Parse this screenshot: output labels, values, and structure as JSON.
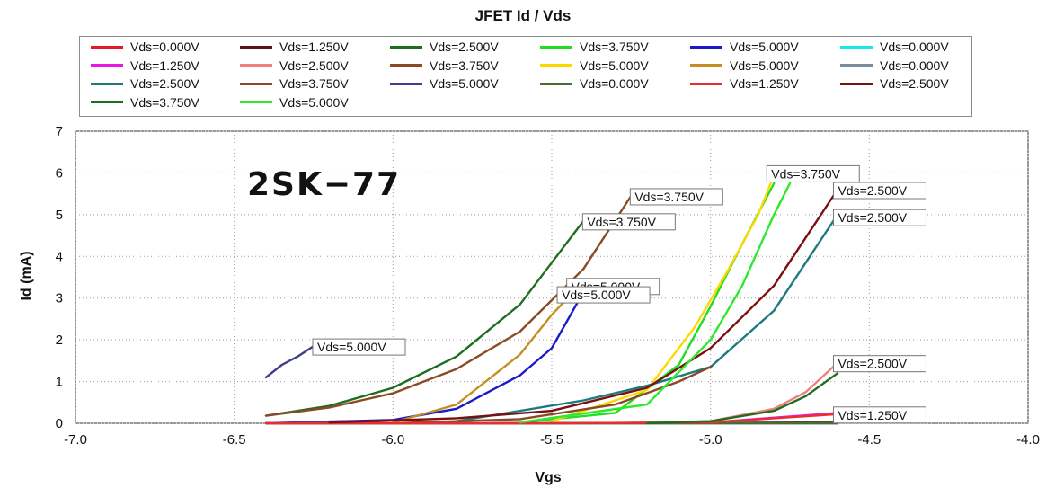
{
  "chart_data": {
    "type": "line",
    "title": "JFET Id / Vds",
    "xlabel": "Vgs",
    "ylabel": "Id (mA)",
    "xlim": [
      -7.0,
      -4.0
    ],
    "ylim": [
      0,
      7
    ],
    "xticks": [
      "-7.0",
      "-6.5",
      "-6.0",
      "-5.5",
      "-5.0",
      "-4.5",
      "-4.0"
    ],
    "yticks": [
      "0",
      "1",
      "2",
      "3",
      "4",
      "5",
      "6",
      "7"
    ],
    "grid": "dotted",
    "legend_position": "top",
    "annotation": "2SK−77",
    "series": [
      {
        "name": "Vds=0.000V",
        "color": "#e8192c",
        "x": [
          -6.4,
          -6.0,
          -5.5,
          -5.0,
          -4.6
        ],
        "y": [
          0,
          0,
          0,
          0,
          0
        ]
      },
      {
        "name": "Vds=1.250V",
        "color": "#5a1414",
        "x": [
          -6.4,
          -6.0,
          -5.5,
          -5.0,
          -4.6
        ],
        "y": [
          0,
          0,
          0,
          0.01,
          0.02
        ]
      },
      {
        "name": "Vds=2.500V",
        "color": "#1f6e1f",
        "x": [
          -6.4,
          -6.2,
          -6.0,
          -5.8,
          -5.6,
          -5.4
        ],
        "y": [
          0.18,
          0.42,
          0.85,
          1.6,
          2.85,
          4.85
        ]
      },
      {
        "name": "Vds=3.750V",
        "color": "#22dd22",
        "x": [
          -5.6,
          -5.3,
          -5.1,
          -5.0,
          -4.9,
          -4.8
        ],
        "y": [
          0.02,
          0.25,
          1.4,
          2.8,
          4.3,
          5.75
        ]
      },
      {
        "name": "Vds=5.000V",
        "color": "#1a1acc",
        "x": [
          -6.4,
          -6.0,
          -5.8,
          -5.6,
          -5.5,
          -5.4
        ],
        "y": [
          0,
          0.08,
          0.35,
          1.15,
          1.8,
          3.15
        ]
      },
      {
        "name": "Vds=0.000V",
        "color": "#19e8e8",
        "x": [
          -6.4,
          -6.0,
          -5.5,
          -5.0,
          -4.6
        ],
        "y": [
          0,
          0,
          0,
          0,
          0
        ]
      },
      {
        "name": "Vds=1.250V",
        "color": "#e819e8",
        "x": [
          -6.4,
          -6.0,
          -5.5,
          -5.0,
          -4.6
        ],
        "y": [
          0,
          0,
          0,
          0.02,
          0.25
        ]
      },
      {
        "name": "Vds=2.500V",
        "color": "#f08080",
        "x": [
          -5.3,
          -5.0,
          -4.8,
          -4.7,
          -4.6
        ],
        "y": [
          0,
          0.05,
          0.35,
          0.75,
          1.45
        ]
      },
      {
        "name": "Vds=3.750V",
        "color": "#8b4a26",
        "x": [
          -6.4,
          -6.2,
          -6.0,
          -5.8,
          -5.6,
          -5.4,
          -5.25
        ],
        "y": [
          0.18,
          0.38,
          0.72,
          1.3,
          2.2,
          3.7,
          5.45
        ]
      },
      {
        "name": "Vds=5.000V",
        "color": "#ffd700",
        "x": [
          -5.5,
          -5.2,
          -5.05,
          -4.95,
          -4.85,
          -4.8
        ],
        "y": [
          0.05,
          0.8,
          2.3,
          3.6,
          5.0,
          5.95
        ]
      },
      {
        "name": "Vds=5.000V",
        "color": "#c48f22",
        "x": [
          -6.0,
          -5.8,
          -5.6,
          -5.5,
          -5.45,
          -5.4
        ],
        "y": [
          0.02,
          0.45,
          1.65,
          2.6,
          3.0,
          3.05
        ]
      },
      {
        "name": "Vds=0.000V",
        "color": "#7a8c99",
        "x": [
          -6.4,
          -6.0,
          -5.5,
          -5.0,
          -4.6
        ],
        "y": [
          0,
          0,
          0,
          0,
          0
        ]
      },
      {
        "name": "Vds=2.500V",
        "color": "#1f7a80",
        "x": [
          -5.8,
          -5.4,
          -5.2,
          -5.0,
          -4.8,
          -4.6
        ],
        "y": [
          0.05,
          0.55,
          0.9,
          1.35,
          2.7,
          5.0
        ]
      },
      {
        "name": "Vds=3.750V",
        "color": "#8b4a26",
        "x": [
          -6.0,
          -5.6,
          -5.3,
          -5.1,
          -5.0
        ],
        "y": [
          0,
          0.1,
          0.45,
          1.0,
          1.35
        ]
      },
      {
        "name": "Vds=5.000V",
        "color": "#3d3d8a",
        "x": [
          -6.4,
          -6.35,
          -6.3,
          -6.25
        ],
        "y": [
          1.1,
          1.4,
          1.6,
          1.85
        ]
      },
      {
        "name": "Vds=0.000V",
        "color": "#4a6b33",
        "x": [
          -6.4,
          -6.0,
          -5.5,
          -5.0,
          -4.6
        ],
        "y": [
          0,
          0,
          0,
          0,
          0
        ]
      },
      {
        "name": "Vds=1.250V",
        "color": "#e82e2e",
        "x": [
          -6.4,
          -6.0,
          -5.5,
          -5.0,
          -4.6
        ],
        "y": [
          0,
          0,
          0,
          0.02,
          0.22
        ]
      },
      {
        "name": "Vds=2.500V",
        "color": "#7a1010",
        "x": [
          -6.2,
          -5.8,
          -5.5,
          -5.2,
          -5.0,
          -4.8,
          -4.6
        ],
        "y": [
          0.02,
          0.12,
          0.3,
          0.85,
          1.8,
          3.3,
          5.6
        ]
      },
      {
        "name": "Vds=3.750V",
        "color": "#1f6e1f",
        "x": [
          -5.2,
          -5.0,
          -4.8,
          -4.7,
          -4.6
        ],
        "y": [
          0,
          0.05,
          0.3,
          0.65,
          1.2
        ]
      },
      {
        "name": "Vds=5.000V",
        "color": "#2ee82e",
        "x": [
          -5.6,
          -5.2,
          -5.0,
          -4.9,
          -4.8,
          -4.75
        ],
        "y": [
          0.02,
          0.45,
          2.0,
          3.3,
          5.0,
          5.75
        ]
      }
    ],
    "curve_labels": [
      {
        "text": "Vds=5.000V",
        "x": -6.25,
        "y": 1.85
      },
      {
        "text": "Vds=3.750V",
        "x": -5.4,
        "y": 4.85
      },
      {
        "text": "Vds=3.750V",
        "x": -5.25,
        "y": 5.45
      },
      {
        "text": "Vds=5.000V",
        "x": -5.45,
        "y": 3.3
      },
      {
        "text": "Vds=5.000V",
        "x": -5.48,
        "y": 3.1
      },
      {
        "text": "Vds=3.750V",
        "x": -4.82,
        "y": 6.0
      },
      {
        "text": "Vds=2.500V",
        "x": -4.61,
        "y": 5.6
      },
      {
        "text": "Vds=2.500V",
        "x": -4.61,
        "y": 4.95
      },
      {
        "text": "Vds=2.500V",
        "x": -4.61,
        "y": 1.45
      },
      {
        "text": "Vds=1.250V",
        "x": -4.61,
        "y": 0.22
      }
    ]
  }
}
